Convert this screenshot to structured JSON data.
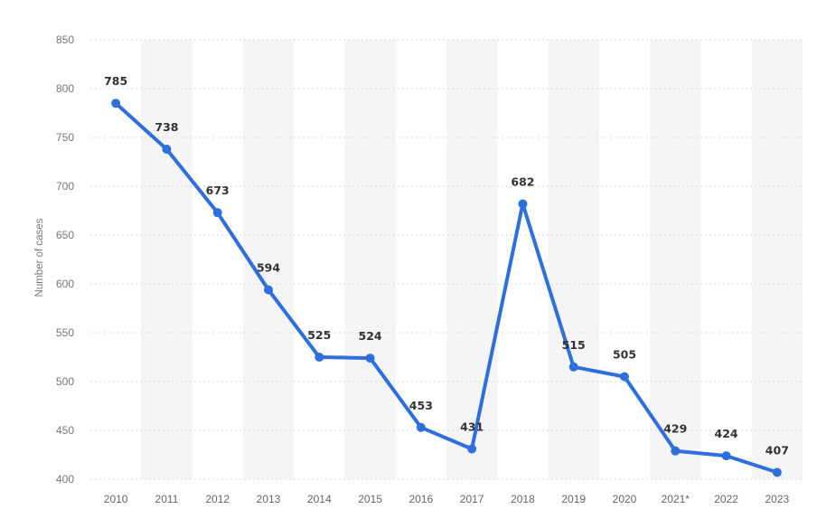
{
  "chart_data": {
    "type": "line",
    "title": "",
    "xlabel": "",
    "ylabel": "Number of cases",
    "categories": [
      "2010",
      "2011",
      "2012",
      "2013",
      "2014",
      "2015",
      "2016",
      "2017",
      "2018",
      "2019",
      "2020",
      "2021*",
      "2022",
      "2023"
    ],
    "series": [
      {
        "values": [
          785,
          738,
          673,
          594,
          525,
          524,
          453,
          431,
          682,
          515,
          505,
          429,
          424,
          407
        ]
      }
    ],
    "data_labels": [
      "785",
      "738",
      "673",
      "594",
      "525",
      "524",
      "453",
      "431",
      "682",
      "515",
      "505",
      "429",
      "424",
      "407"
    ],
    "ylim": [
      400,
      850
    ],
    "yticks": [
      "400",
      "450",
      "500",
      "550",
      "600",
      "650",
      "700",
      "750",
      "800",
      "850"
    ],
    "grid": true,
    "legend": "none",
    "colors": {
      "line": "#2f6fdd",
      "marker": "#2f6fdd",
      "grid": "#d9d9d9",
      "band": "#f5f5f5"
    }
  }
}
